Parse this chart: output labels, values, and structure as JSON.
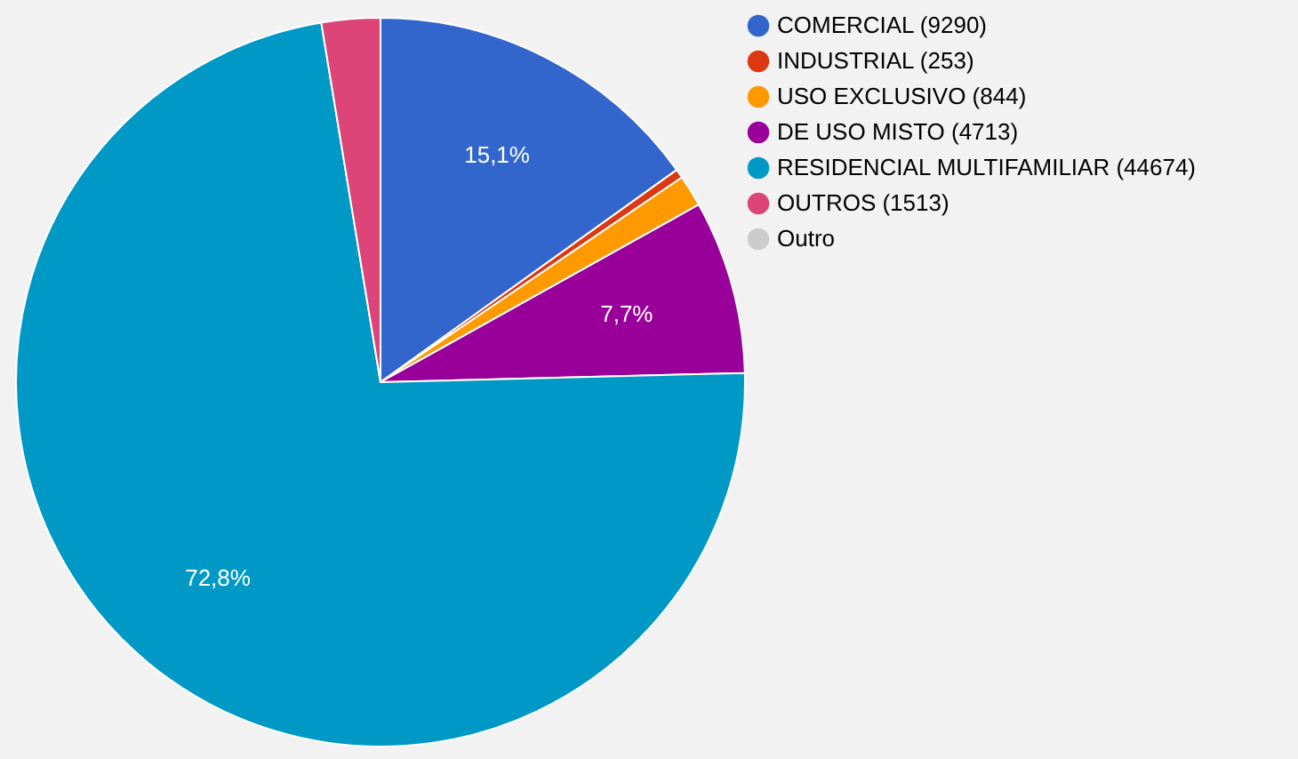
{
  "chart_data": {
    "type": "pie",
    "categories": [
      "COMERCIAL (9290)",
      "INDUSTRIAL (253)",
      "USO EXCLUSIVO (844)",
      "DE USO MISTO (4713)",
      "RESIDENCIAL MULTIFAMILIAR (44674)",
      "OUTROS (1513)",
      "Outro"
    ],
    "values": [
      15.1,
      0.4,
      1.4,
      7.7,
      72.8,
      2.6,
      0
    ],
    "colors": [
      "#3366cc",
      "#dc3912",
      "#ff9900",
      "#990099",
      "#0099c6",
      "#dd4477",
      "#cccccc"
    ],
    "value_labels": [
      "15,1%",
      null,
      null,
      "7,7%",
      "72,8%",
      null,
      null
    ],
    "legend": "top right"
  }
}
